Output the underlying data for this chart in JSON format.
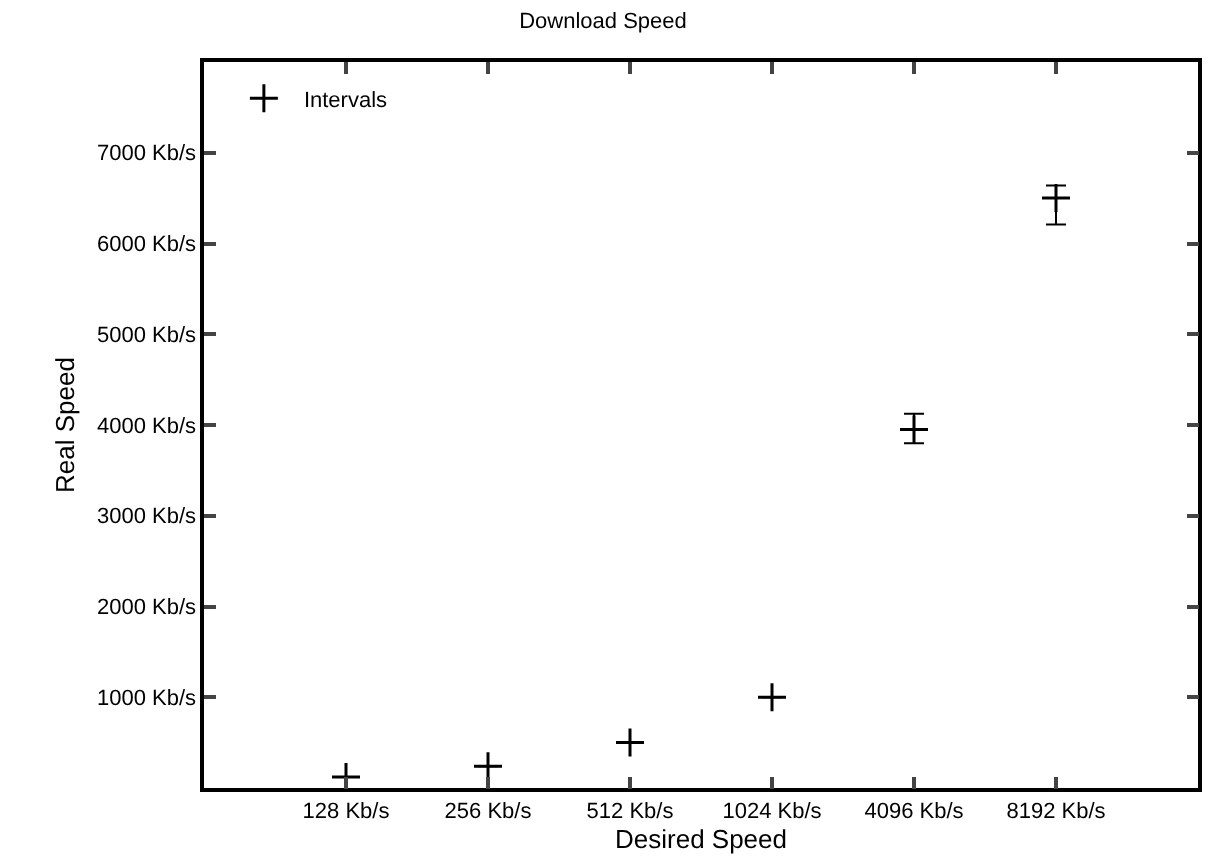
{
  "chart_data": {
    "type": "scatter",
    "title": "Download Speed",
    "xlabel": "Desired Speed",
    "ylabel": "Real Speed",
    "categories": [
      "128 Kb/s",
      "256 Kb/s",
      "512 Kb/s",
      "1024 Kb/s",
      "4096 Kb/s",
      "8192 Kb/s"
    ],
    "series": [
      {
        "name": "Intervals",
        "color": "#000000",
        "values": [
          120,
          240,
          500,
          1000,
          3950,
          6500
        ],
        "errors": [
          null,
          null,
          null,
          null,
          [
            3800,
            4125
          ],
          [
            6210,
            6640
          ]
        ]
      }
    ],
    "ylim": [
      0,
      8000
    ],
    "yticks": [
      {
        "value": 0,
        "label": null
      },
      {
        "value": 1000,
        "label": "1000 Kb/s"
      },
      {
        "value": 2000,
        "label": "2000 Kb/s"
      },
      {
        "value": 3000,
        "label": "3000 Kb/s"
      },
      {
        "value": 4000,
        "label": "4000 Kb/s"
      },
      {
        "value": 5000,
        "label": "5000 Kb/s"
      },
      {
        "value": 6000,
        "label": "6000 Kb/s"
      },
      {
        "value": 7000,
        "label": "7000 Kb/s"
      },
      {
        "value": 8000,
        "label": null
      }
    ],
    "marker": "cross",
    "legend": "top left"
  }
}
